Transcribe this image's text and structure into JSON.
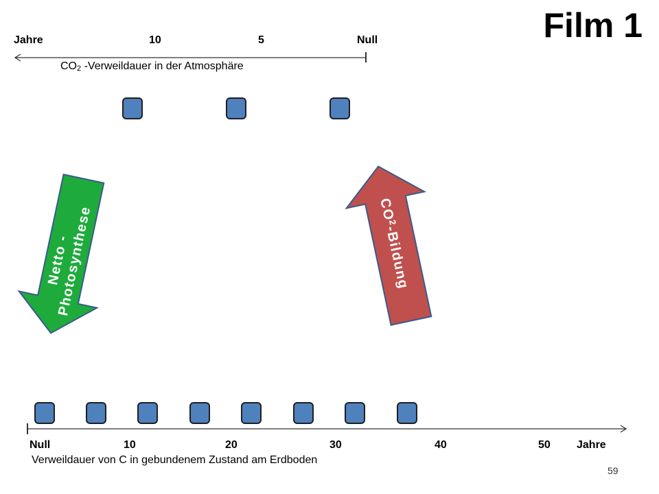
{
  "title": "Film 1",
  "top_axis": {
    "labels": [
      "Jahre",
      "10",
      "5",
      "Null"
    ],
    "caption_prefix": "CO",
    "caption_sub": "2",
    "caption_suffix": " -Verweildauer in der Atmosphäre",
    "box_count": 3
  },
  "bottom_axis": {
    "labels": [
      "Null",
      "10",
      "20",
      "30",
      "40",
      "50",
      "Jahre"
    ],
    "caption": "Verweildauer von C in gebundenem Zustand am Erdboden",
    "box_count": 8
  },
  "arrow_left": {
    "line1": "Netto -",
    "line2": "Photosynthese",
    "color": "#1eab3c"
  },
  "arrow_right": {
    "prefix": "CO",
    "sub": "2",
    "suffix": "-Bildung",
    "color": "#c0504d"
  },
  "box_color": "#4f81bd",
  "page_number": "59"
}
